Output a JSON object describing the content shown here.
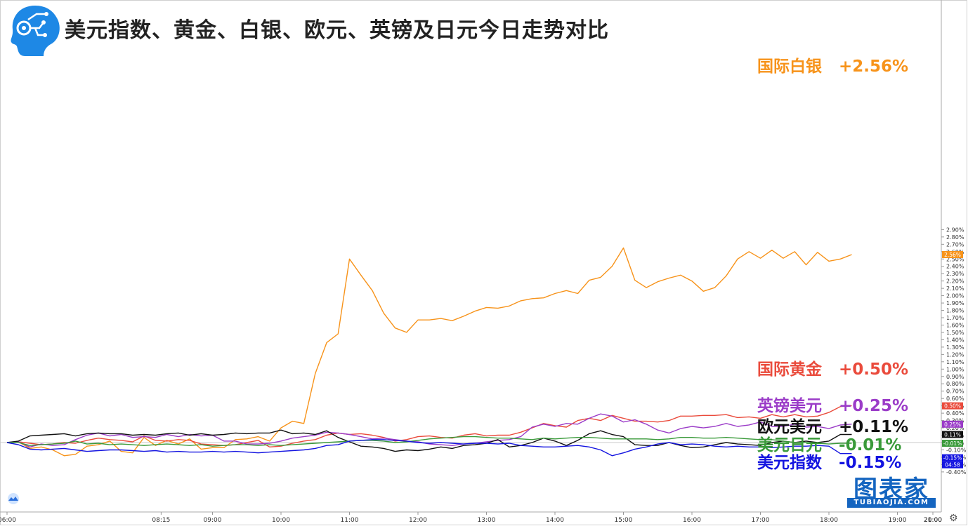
{
  "title": "美元指数、黄金、白银、欧元、英镑及日元今日走势对比",
  "brand": {
    "cn": "图表家",
    "en": "TUBIAOJIA.COM"
  },
  "chart_data": {
    "type": "line",
    "y_unit": "%",
    "ylim": [
      -0.45,
      2.95
    ],
    "y_ticks": [
      "2.90%",
      "2.80%",
      "2.70%",
      "2.60%",
      "2.50%",
      "2.40%",
      "2.30%",
      "2.20%",
      "2.10%",
      "2.00%",
      "1.90%",
      "1.80%",
      "1.70%",
      "1.60%",
      "1.50%",
      "1.40%",
      "1.30%",
      "1.20%",
      "1.10%",
      "1.00%",
      "0.90%",
      "0.80%",
      "0.70%",
      "0.60%",
      "0.50%",
      "0.40%",
      "0.30%",
      "0.20%",
      "0.10%",
      "0.00%",
      "-0.10%",
      "-0.20%",
      "-0.30%",
      "-0.40%"
    ],
    "x_ticks": [
      "06:00",
      "08:15",
      "09:00",
      "10:00",
      "11:00",
      "12:00",
      "13:00",
      "14:00",
      "15:00",
      "16:00",
      "17:00",
      "18:00",
      "19:00",
      "20:00",
      "21:00"
    ],
    "countdown": "04:58",
    "x": [
      "06:00",
      "06:10",
      "06:20",
      "06:30",
      "06:40",
      "06:50",
      "07:00",
      "07:10",
      "07:20",
      "07:30",
      "07:40",
      "07:50",
      "08:00",
      "08:10",
      "08:20",
      "08:30",
      "08:40",
      "08:50",
      "09:00",
      "09:10",
      "09:20",
      "09:30",
      "09:40",
      "09:50",
      "10:00",
      "10:10",
      "10:20",
      "10:30",
      "10:40",
      "10:50",
      "11:00",
      "11:10",
      "11:20",
      "11:30",
      "11:40",
      "11:50",
      "12:00",
      "12:10",
      "12:20",
      "12:30",
      "12:40",
      "12:50",
      "13:00",
      "13:10",
      "13:20",
      "13:30",
      "13:40",
      "13:50",
      "14:00",
      "14:10",
      "14:20",
      "14:30",
      "14:40",
      "14:50",
      "15:00",
      "15:10",
      "15:20",
      "15:30",
      "15:40",
      "15:50",
      "16:00",
      "16:10",
      "16:20",
      "16:30",
      "16:40",
      "16:50",
      "17:00",
      "17:10",
      "17:20",
      "17:30",
      "17:40",
      "17:50",
      "18:00",
      "18:10",
      "18:20"
    ],
    "series": [
      {
        "name": "国际白银",
        "label": "国际白银   +2.56%",
        "color": "#f7931a",
        "last_tag": "2.56%",
        "values": [
          0.0,
          0.01,
          -0.08,
          -0.06,
          -0.1,
          -0.18,
          -0.16,
          -0.05,
          -0.03,
          0.02,
          -0.12,
          -0.14,
          0.07,
          -0.04,
          0.03,
          -0.02,
          0.05,
          -0.09,
          -0.07,
          -0.07,
          0.04,
          0.05,
          0.08,
          0.02,
          0.2,
          0.29,
          0.26,
          0.94,
          1.36,
          1.48,
          2.5,
          2.28,
          2.07,
          1.76,
          1.56,
          1.5,
          1.67,
          1.67,
          1.69,
          1.66,
          1.72,
          1.79,
          1.84,
          1.83,
          1.86,
          1.93,
          1.96,
          1.97,
          2.03,
          2.07,
          2.03,
          2.21,
          2.25,
          2.4,
          2.65,
          2.21,
          2.11,
          2.19,
          2.24,
          2.28,
          2.2,
          2.06,
          2.11,
          2.27,
          2.5,
          2.6,
          2.51,
          2.62,
          2.51,
          2.6,
          2.42,
          2.59,
          2.47,
          2.5,
          2.56
        ]
      },
      {
        "name": "国际黄金",
        "label": "国际黄金   +0.50%",
        "color": "#ea4b3c",
        "last_tag": "0.50%",
        "values": [
          0.0,
          0.01,
          -0.01,
          -0.03,
          -0.02,
          0.0,
          -0.01,
          0.03,
          0.06,
          0.04,
          0.03,
          0.01,
          0.09,
          0.03,
          0.02,
          0.04,
          0.03,
          -0.02,
          -0.03,
          -0.04,
          -0.03,
          0.0,
          0.03,
          -0.06,
          -0.05,
          -0.01,
          0.02,
          0.04,
          0.1,
          0.13,
          0.11,
          0.12,
          0.1,
          0.07,
          0.02,
          0.04,
          0.08,
          0.09,
          0.07,
          0.06,
          0.1,
          0.12,
          0.09,
          0.1,
          0.1,
          0.14,
          0.2,
          0.26,
          0.23,
          0.21,
          0.3,
          0.33,
          0.3,
          0.37,
          0.33,
          0.29,
          0.29,
          0.28,
          0.3,
          0.36,
          0.36,
          0.37,
          0.37,
          0.38,
          0.34,
          0.35,
          0.33,
          0.38,
          0.35,
          0.38,
          0.35,
          0.36,
          0.41,
          0.49,
          0.5
        ]
      },
      {
        "name": "英镑美元",
        "label": "英镑美元   +0.25%",
        "color": "#9b3cc8",
        "last_tag": "0.25%",
        "values": [
          0.0,
          0.01,
          -0.06,
          -0.02,
          -0.04,
          -0.03,
          0.04,
          0.1,
          0.13,
          0.09,
          0.11,
          0.07,
          0.08,
          0.07,
          0.11,
          0.08,
          0.11,
          0.09,
          0.1,
          0.02,
          0.02,
          -0.02,
          -0.02,
          -0.01,
          0.02,
          0.06,
          0.08,
          0.1,
          0.14,
          0.13,
          0.11,
          0.08,
          0.05,
          0.06,
          0.04,
          0.02,
          0.01,
          -0.02,
          -0.03,
          -0.04,
          -0.02,
          -0.01,
          0.01,
          0.03,
          0.04,
          0.08,
          0.21,
          0.25,
          0.22,
          0.26,
          0.25,
          0.33,
          0.39,
          0.36,
          0.28,
          0.31,
          0.25,
          0.17,
          0.13,
          0.19,
          0.22,
          0.2,
          0.22,
          0.26,
          0.22,
          0.24,
          0.28,
          0.22,
          0.22,
          0.25,
          0.21,
          0.22,
          0.19,
          0.24,
          0.25
        ]
      },
      {
        "name": "欧元美元",
        "label": "欧元美元   +0.11%",
        "color": "#111111",
        "last_tag": "0.11%",
        "values": [
          0.0,
          0.02,
          0.09,
          0.1,
          0.11,
          0.12,
          0.09,
          0.12,
          0.13,
          0.12,
          0.12,
          0.1,
          0.11,
          0.1,
          0.12,
          0.13,
          0.1,
          0.12,
          0.1,
          0.11,
          0.13,
          0.12,
          0.13,
          0.13,
          0.17,
          0.12,
          0.13,
          0.11,
          0.16,
          0.07,
          0.01,
          -0.05,
          -0.06,
          -0.08,
          -0.12,
          -0.1,
          -0.11,
          -0.09,
          -0.06,
          -0.08,
          -0.04,
          -0.03,
          -0.01,
          0.04,
          -0.06,
          -0.04,
          0.0,
          0.06,
          0.02,
          -0.04,
          0.03,
          0.12,
          0.16,
          0.11,
          0.08,
          -0.03,
          -0.04,
          -0.04,
          0.0,
          -0.04,
          -0.07,
          -0.06,
          -0.03,
          0.0,
          -0.02,
          -0.03,
          -0.04,
          0.0,
          0.02,
          0.0,
          0.02,
          0.0,
          0.02,
          0.11,
          0.11
        ]
      },
      {
        "name": "美元日元",
        "label": "美元日元   -0.01%",
        "color": "#3a9a3a",
        "last_tag": "-0.01%",
        "values": [
          0.0,
          0.0,
          -0.04,
          -0.03,
          -0.02,
          -0.01,
          0.02,
          -0.02,
          -0.01,
          -0.03,
          -0.02,
          -0.03,
          -0.04,
          -0.03,
          -0.02,
          -0.03,
          -0.04,
          -0.03,
          -0.05,
          -0.04,
          -0.03,
          -0.03,
          -0.04,
          -0.03,
          -0.04,
          -0.03,
          -0.02,
          -0.01,
          0.0,
          0.01,
          0.02,
          0.03,
          0.03,
          0.02,
          0.0,
          0.01,
          0.03,
          0.05,
          0.06,
          0.07,
          0.08,
          0.08,
          0.07,
          0.06,
          0.06,
          0.05,
          0.04,
          0.06,
          0.05,
          0.06,
          0.07,
          0.07,
          0.06,
          0.05,
          0.05,
          0.05,
          0.05,
          0.04,
          0.05,
          0.07,
          0.07,
          0.06,
          0.06,
          0.07,
          0.06,
          0.05,
          0.04,
          0.04,
          0.02,
          0.0,
          0.0,
          -0.01,
          -0.02,
          -0.01,
          -0.01
        ]
      },
      {
        "name": "美元指数",
        "label": "美元指数   -0.15%",
        "color": "#1414e0",
        "last_tag": "-0.15%",
        "values": [
          0.0,
          -0.03,
          -0.09,
          -0.1,
          -0.09,
          -0.08,
          -0.1,
          -0.12,
          -0.11,
          -0.1,
          -0.1,
          -0.11,
          -0.12,
          -0.11,
          -0.13,
          -0.12,
          -0.13,
          -0.13,
          -0.12,
          -0.13,
          -0.12,
          -0.13,
          -0.14,
          -0.13,
          -0.12,
          -0.11,
          -0.1,
          -0.08,
          -0.04,
          -0.03,
          0.02,
          0.03,
          0.04,
          0.04,
          0.03,
          0.02,
          0.0,
          -0.01,
          0.0,
          -0.01,
          -0.02,
          -0.01,
          -0.01,
          -0.02,
          -0.01,
          -0.04,
          -0.05,
          -0.06,
          -0.06,
          -0.05,
          -0.04,
          -0.06,
          -0.1,
          -0.18,
          -0.14,
          -0.09,
          -0.06,
          -0.02,
          0.0,
          -0.03,
          -0.02,
          -0.03,
          -0.05,
          -0.06,
          -0.05,
          -0.06,
          -0.06,
          -0.07,
          -0.06,
          -0.05,
          -0.05,
          -0.04,
          -0.05,
          -0.15,
          -0.15
        ]
      }
    ]
  }
}
